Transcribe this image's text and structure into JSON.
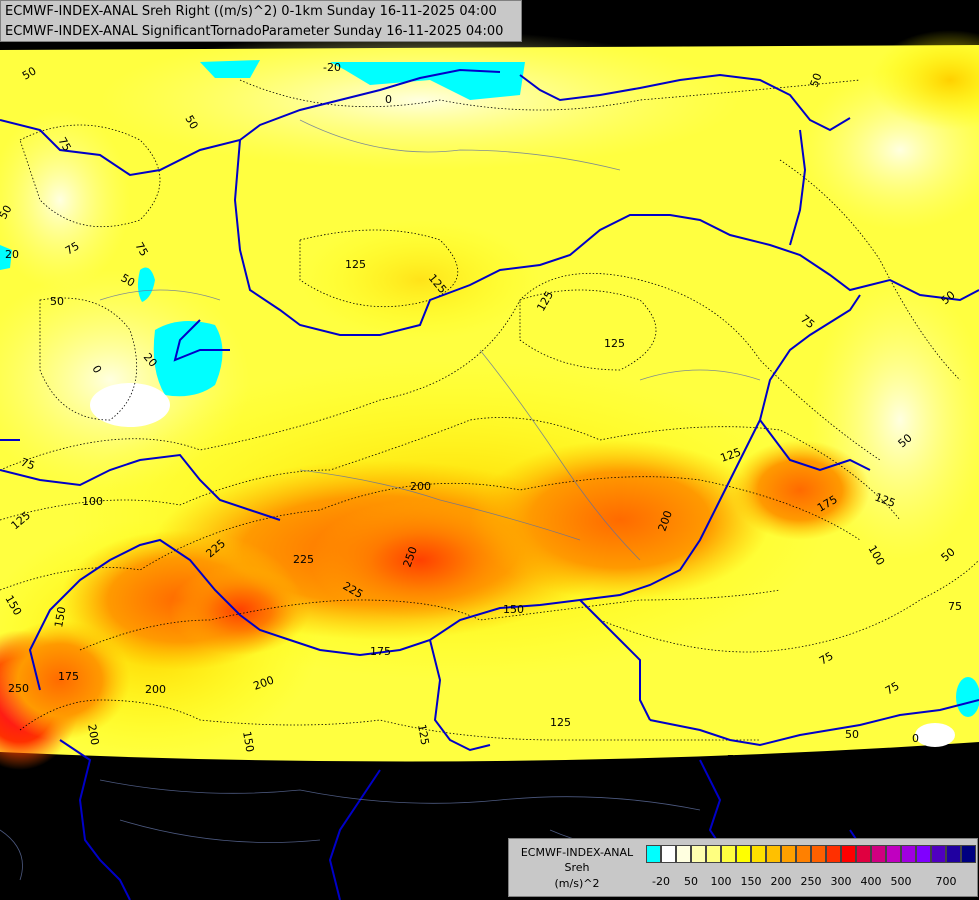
{
  "header": {
    "line1": "ECMWF-INDEX-ANAL Sreh Right ((m/s)^2) 0-1km Sunday 16-11-2025 04:00",
    "line2": "ECMWF-INDEX-ANAL SignificantTornadoParameter Sunday 16-11-2025 04:00"
  },
  "legend": {
    "title1": "ECMWF-INDEX-ANAL",
    "title2": "Sreh",
    "title3": "(m/s)^2",
    "colors": [
      "#00ffff",
      "#ffffff",
      "#ffffe0",
      "#ffffb0",
      "#ffff80",
      "#ffff40",
      "#ffff00",
      "#ffe000",
      "#ffc000",
      "#ffa000",
      "#ff8000",
      "#ff6000",
      "#ff3000",
      "#ff0000",
      "#e00040",
      "#d00080",
      "#c000c0",
      "#a000e0",
      "#8000ff",
      "#5000c0",
      "#2000a0",
      "#000080"
    ],
    "ticks": [
      "-20",
      "50",
      "100",
      "150",
      "200",
      "250",
      "300",
      "400",
      "500",
      "700"
    ]
  },
  "map": {
    "contour_labels": [
      "50",
      "50",
      "50",
      "50",
      "50",
      "50",
      "50",
      "50",
      "50",
      "50",
      "75",
      "75",
      "75",
      "75",
      "75",
      "75",
      "75",
      "75",
      "75",
      "100",
      "100",
      "125",
      "125",
      "125",
      "125",
      "125",
      "125",
      "125",
      "125",
      "125",
      "150",
      "150",
      "150",
      "150",
      "175",
      "175",
      "175",
      "200",
      "200",
      "200",
      "200",
      "200",
      "225",
      "225",
      "225",
      "250",
      "250",
      "20",
      "20",
      "0",
      "-20",
      "0",
      "0"
    ]
  }
}
